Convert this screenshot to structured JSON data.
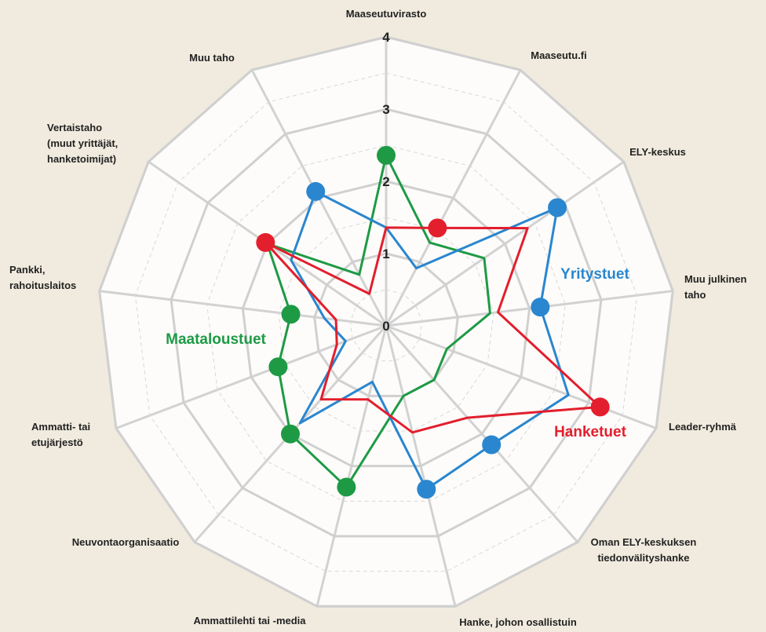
{
  "chart_data": {
    "type": "radar",
    "categories": [
      [
        "Maaseutuvirasto"
      ],
      [
        "Maaseutu.fi"
      ],
      [
        "ELY-keskus"
      ],
      [
        "Muu julkinen",
        "taho"
      ],
      [
        "Leader-ryhmä"
      ],
      [
        "Oman ELY-keskuksen",
        "tiedonvälityshanke"
      ],
      [
        "Hanke, johon osallistuin"
      ],
      [
        "Ammattilehti tai -media"
      ],
      [
        "Neuvontaorganisaatio"
      ],
      [
        "Ammatti- tai",
        "etujärjestö"
      ],
      [
        "Pankki,",
        "rahoituslaitos"
      ],
      [
        "Vertaistaho",
        "(muut yrittäjät,",
        "hanketoimijat)"
      ],
      [
        "Muu taho"
      ]
    ],
    "ylim": [
      0,
      4
    ],
    "yticks": [
      0,
      1,
      2,
      3,
      4
    ],
    "grid": true,
    "series": [
      {
        "name": "Maataloustuet",
        "color": "#1e9a45",
        "values": [
          2.36,
          1.3,
          1.65,
          1.45,
          0.9,
          1.0,
          1.0,
          2.3,
          2.0,
          1.6,
          1.33,
          2.0,
          0.8
        ],
        "markers": [
          0,
          7,
          8,
          9,
          10
        ]
      },
      {
        "name": "Yritystuet",
        "color": "#2a86cf",
        "values": [
          1.36,
          0.9,
          2.88,
          2.15,
          2.7,
          2.2,
          2.33,
          0.8,
          1.8,
          0.6,
          0.86,
          1.6,
          2.1
        ],
        "markers": [
          2,
          3,
          5,
          6,
          12
        ]
      },
      {
        "name": "Hanketuet",
        "color": "#e31e2d",
        "values": [
          1.36,
          1.53,
          2.38,
          1.56,
          3.17,
          1.7,
          1.52,
          1.05,
          1.36,
          0.73,
          0.7,
          2.03,
          0.5
        ],
        "markers": [
          1,
          4,
          11
        ]
      }
    ]
  }
}
